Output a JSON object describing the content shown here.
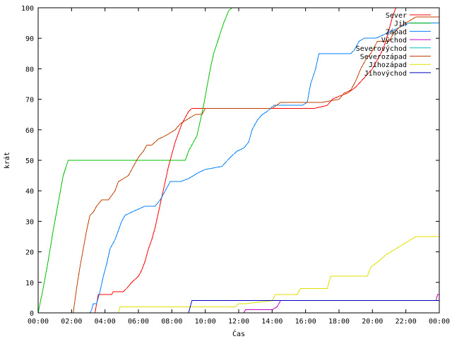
{
  "chart_data": {
    "type": "line",
    "xlabel": "Čas",
    "ylabel": "krát",
    "x_unit": "hours",
    "xlim": [
      0,
      24
    ],
    "ylim": [
      0,
      100
    ],
    "x_ticks": [
      {
        "v": 0,
        "label": "00:00"
      },
      {
        "v": 2,
        "label": "02:00"
      },
      {
        "v": 4,
        "label": "04:00"
      },
      {
        "v": 6,
        "label": "06:00"
      },
      {
        "v": 8,
        "label": "08:00"
      },
      {
        "v": 10,
        "label": "10:00"
      },
      {
        "v": 12,
        "label": "12:00"
      },
      {
        "v": 14,
        "label": "14:00"
      },
      {
        "v": 16,
        "label": "16:00"
      },
      {
        "v": 18,
        "label": "18:00"
      },
      {
        "v": 20,
        "label": "20:00"
      },
      {
        "v": 22,
        "label": "22:00"
      },
      {
        "v": 24,
        "label": "00:00"
      }
    ],
    "y_ticks": [
      {
        "v": 0,
        "label": "0"
      },
      {
        "v": 10,
        "label": "10"
      },
      {
        "v": 20,
        "label": "20"
      },
      {
        "v": 30,
        "label": "30"
      },
      {
        "v": 40,
        "label": "40"
      },
      {
        "v": 50,
        "label": "50"
      },
      {
        "v": 60,
        "label": "60"
      },
      {
        "v": 70,
        "label": "70"
      },
      {
        "v": 80,
        "label": "80"
      },
      {
        "v": 90,
        "label": "90"
      },
      {
        "v": 100,
        "label": "100"
      }
    ],
    "legend_position": "top-right",
    "series": [
      {
        "name": "Sever",
        "color": "#ff0000",
        "points": [
          [
            3.4,
            0
          ],
          [
            3.5,
            3
          ],
          [
            3.6,
            6
          ],
          [
            4.4,
            6
          ],
          [
            4.5,
            7
          ],
          [
            5.1,
            7
          ],
          [
            5.3,
            8
          ],
          [
            5.6,
            10
          ],
          [
            6.0,
            12
          ],
          [
            6.2,
            14
          ],
          [
            6.4,
            17
          ],
          [
            6.6,
            21
          ],
          [
            6.8,
            24
          ],
          [
            7.0,
            28
          ],
          [
            7.2,
            33
          ],
          [
            7.4,
            38
          ],
          [
            7.6,
            43
          ],
          [
            7.8,
            48
          ],
          [
            8.0,
            52
          ],
          [
            8.2,
            56
          ],
          [
            8.4,
            59
          ],
          [
            8.6,
            62
          ],
          [
            8.8,
            64
          ],
          [
            9.0,
            66
          ],
          [
            9.2,
            67
          ],
          [
            10.0,
            67
          ],
          [
            14.0,
            67
          ],
          [
            16.5,
            67
          ],
          [
            17.3,
            68
          ],
          [
            17.6,
            70
          ],
          [
            18.0,
            71
          ],
          [
            18.5,
            72
          ],
          [
            19.0,
            74
          ],
          [
            19.5,
            77
          ],
          [
            20.0,
            80
          ],
          [
            20.3,
            83
          ],
          [
            20.6,
            86
          ],
          [
            20.8,
            89
          ],
          [
            21.0,
            93
          ],
          [
            21.2,
            97
          ],
          [
            21.4,
            100
          ]
        ]
      },
      {
        "name": "Jih",
        "color": "#00c000",
        "points": [
          [
            0,
            0
          ],
          [
            0.3,
            8
          ],
          [
            0.6,
            17
          ],
          [
            0.9,
            27
          ],
          [
            1.2,
            36
          ],
          [
            1.5,
            45
          ],
          [
            1.8,
            50
          ],
          [
            2.0,
            50
          ],
          [
            5.0,
            50
          ],
          [
            8.0,
            50
          ],
          [
            8.8,
            50
          ],
          [
            9.0,
            53
          ],
          [
            9.2,
            55
          ],
          [
            9.5,
            58
          ],
          [
            9.7,
            63
          ],
          [
            9.9,
            68
          ],
          [
            10.1,
            74
          ],
          [
            10.3,
            80
          ],
          [
            10.5,
            85
          ],
          [
            10.8,
            90
          ],
          [
            11.1,
            95
          ],
          [
            11.4,
            99
          ],
          [
            11.6,
            100
          ]
        ]
      },
      {
        "name": "Západ",
        "color": "#0080ff",
        "points": [
          [
            3.1,
            0
          ],
          [
            3.2,
            1
          ],
          [
            3.3,
            3
          ],
          [
            3.5,
            3
          ],
          [
            3.7,
            7
          ],
          [
            3.9,
            12
          ],
          [
            4.1,
            16
          ],
          [
            4.3,
            21
          ],
          [
            4.6,
            24
          ],
          [
            4.8,
            27
          ],
          [
            5.0,
            30
          ],
          [
            5.2,
            32
          ],
          [
            5.6,
            33
          ],
          [
            6.0,
            34
          ],
          [
            6.4,
            35
          ],
          [
            7.0,
            35
          ],
          [
            7.3,
            37
          ],
          [
            7.6,
            40
          ],
          [
            7.9,
            43
          ],
          [
            8.5,
            43
          ],
          [
            9.0,
            44
          ],
          [
            9.6,
            46
          ],
          [
            10.0,
            47
          ],
          [
            11.0,
            48
          ],
          [
            11.5,
            51
          ],
          [
            11.9,
            53
          ],
          [
            12.3,
            54
          ],
          [
            12.6,
            56
          ],
          [
            12.8,
            60
          ],
          [
            13.1,
            63
          ],
          [
            13.4,
            65
          ],
          [
            13.7,
            66
          ],
          [
            14.1,
            68
          ],
          [
            15.0,
            68
          ],
          [
            15.8,
            68
          ],
          [
            16.1,
            69
          ],
          [
            16.3,
            75
          ],
          [
            16.6,
            80
          ],
          [
            16.8,
            85
          ],
          [
            17.5,
            85
          ],
          [
            18.7,
            85
          ],
          [
            18.9,
            86
          ],
          [
            19.2,
            89
          ],
          [
            19.5,
            90
          ],
          [
            20.2,
            90
          ],
          [
            20.6,
            91
          ],
          [
            21.0,
            92
          ],
          [
            21.4,
            93
          ],
          [
            21.8,
            94
          ],
          [
            22.2,
            95
          ],
          [
            24.0,
            95
          ]
        ]
      },
      {
        "name": "Východ",
        "color": "#c000c0",
        "points": [
          [
            0,
            0
          ],
          [
            12.0,
            0
          ],
          [
            12.3,
            0
          ],
          [
            12.4,
            1
          ],
          [
            14.0,
            1
          ],
          [
            14.3,
            2
          ],
          [
            14.5,
            4
          ],
          [
            18.0,
            4
          ],
          [
            22.0,
            4
          ],
          [
            23.8,
            4
          ],
          [
            23.9,
            6
          ],
          [
            24.0,
            6
          ]
        ]
      },
      {
        "name": "Severovýchod",
        "color": "#00c0c0",
        "points": [
          [
            0,
            0
          ],
          [
            24.0,
            0
          ]
        ]
      },
      {
        "name": "Severozápad",
        "color": "#c04000",
        "points": [
          [
            2.1,
            0
          ],
          [
            2.3,
            8
          ],
          [
            2.5,
            15
          ],
          [
            2.7,
            21
          ],
          [
            2.9,
            27
          ],
          [
            3.1,
            32
          ],
          [
            3.3,
            33
          ],
          [
            3.5,
            35
          ],
          [
            3.8,
            37
          ],
          [
            4.2,
            37
          ],
          [
            4.6,
            40
          ],
          [
            4.8,
            43
          ],
          [
            5.1,
            44
          ],
          [
            5.4,
            45
          ],
          [
            5.7,
            48
          ],
          [
            6.0,
            51
          ],
          [
            6.3,
            53
          ],
          [
            6.5,
            55
          ],
          [
            6.8,
            55
          ],
          [
            7.2,
            57
          ],
          [
            7.6,
            58
          ],
          [
            7.9,
            59
          ],
          [
            8.2,
            60
          ],
          [
            8.5,
            62
          ],
          [
            8.8,
            63
          ],
          [
            9.1,
            64
          ],
          [
            9.4,
            65
          ],
          [
            9.8,
            65
          ],
          [
            10.0,
            67
          ],
          [
            14.0,
            67
          ],
          [
            14.5,
            69
          ],
          [
            16.0,
            69
          ],
          [
            17.0,
            69
          ],
          [
            18.0,
            70
          ],
          [
            18.3,
            72
          ],
          [
            18.7,
            73
          ],
          [
            19.0,
            76
          ],
          [
            19.3,
            80
          ],
          [
            19.6,
            83
          ],
          [
            19.9,
            85
          ],
          [
            20.1,
            87
          ],
          [
            20.3,
            89
          ],
          [
            21.0,
            89
          ],
          [
            21.3,
            92
          ],
          [
            21.7,
            94
          ],
          [
            22.0,
            95
          ],
          [
            22.6,
            97
          ],
          [
            24.0,
            97
          ]
        ]
      },
      {
        "name": "Jihozápad",
        "color": "#e0e000",
        "points": [
          [
            4.8,
            0
          ],
          [
            4.9,
            2
          ],
          [
            8.9,
            2
          ],
          [
            9.2,
            2
          ],
          [
            10.0,
            2
          ],
          [
            11.8,
            2
          ],
          [
            12.0,
            3
          ],
          [
            12.4,
            3
          ],
          [
            14.0,
            4
          ],
          [
            14.2,
            6
          ],
          [
            15.5,
            6
          ],
          [
            15.7,
            8
          ],
          [
            17.3,
            8
          ],
          [
            17.5,
            12
          ],
          [
            19.7,
            12
          ],
          [
            19.9,
            15
          ],
          [
            20.4,
            17
          ],
          [
            20.8,
            19
          ],
          [
            21.4,
            21
          ],
          [
            22.0,
            23
          ],
          [
            22.6,
            25
          ],
          [
            24.0,
            25
          ]
        ]
      },
      {
        "name": "Jihovýchod",
        "color": "#0000c0",
        "points": [
          [
            0,
            0
          ],
          [
            9.0,
            0
          ],
          [
            9.2,
            4
          ],
          [
            12.0,
            4
          ],
          [
            16.0,
            4
          ],
          [
            20.0,
            4
          ],
          [
            24.0,
            4
          ]
        ]
      }
    ]
  }
}
